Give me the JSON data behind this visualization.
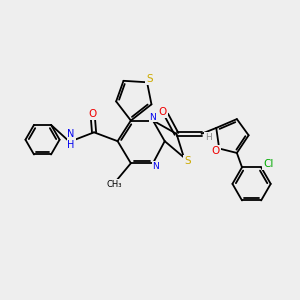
{
  "background_color": "#eeeeee",
  "atom_colors": {
    "N": "#0000ee",
    "O": "#ee0000",
    "S": "#ccaa00",
    "Cl": "#00aa00",
    "H": "#888888",
    "C": "#000000"
  },
  "bond_color": "#000000",
  "lw": 1.3
}
